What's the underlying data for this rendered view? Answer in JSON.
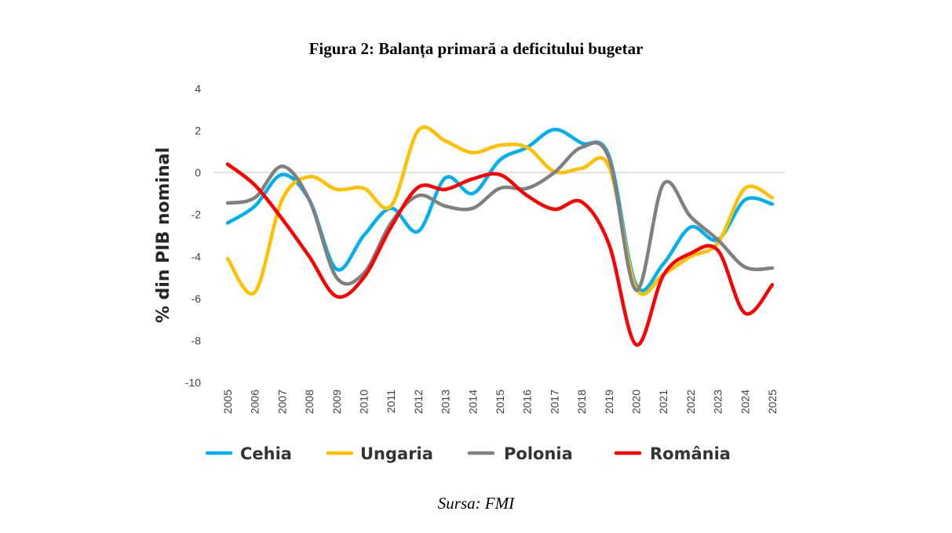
{
  "figure": {
    "title": "Figura 2: Balanța primară a deficitului bugetar",
    "source": "Sursa: FMI"
  },
  "chart_data": {
    "type": "line",
    "title": "Figura 2: Balanța primară a deficitului bugetar",
    "xlabel": "",
    "ylabel": "% din PIB nominal",
    "ylim": [
      -10,
      4
    ],
    "yticks": [
      4,
      2,
      0,
      -2,
      -4,
      -6,
      -8,
      -10
    ],
    "grid": "zero-line only",
    "legend_position": "bottom",
    "smooth": true,
    "categories": [
      "2005",
      "2006",
      "2007",
      "2008",
      "2009",
      "2010",
      "2011",
      "2012",
      "2013",
      "2014",
      "2015",
      "2016",
      "2017",
      "2018",
      "2019",
      "2020",
      "2021",
      "2022",
      "2023",
      "2024",
      "2025"
    ],
    "series": [
      {
        "name": "Cehia",
        "color": "#00B0F0",
        "values": [
          -2.4,
          -1.6,
          -0.1,
          -1.3,
          -4.6,
          -3.0,
          -1.7,
          -2.8,
          -0.25,
          -1.0,
          0.6,
          1.2,
          2.05,
          1.4,
          0.8,
          -5.35,
          -4.35,
          -2.6,
          -3.2,
          -1.3,
          -1.5
        ]
      },
      {
        "name": "Ungaria",
        "color": "#FFC000",
        "values": [
          -4.1,
          -5.7,
          -1.3,
          -0.2,
          -0.8,
          -0.75,
          -1.6,
          2.0,
          1.5,
          0.95,
          1.3,
          1.2,
          0.05,
          0.2,
          0.3,
          -5.5,
          -4.85,
          -4.0,
          -3.35,
          -0.75,
          -1.2
        ]
      },
      {
        "name": "Polonia",
        "color": "#808080",
        "values": [
          -1.45,
          -1.2,
          0.3,
          -1.3,
          -5.0,
          -4.8,
          -2.4,
          -1.1,
          -1.6,
          -1.7,
          -0.75,
          -0.75,
          0.0,
          1.2,
          0.7,
          -5.6,
          -0.55,
          -2.1,
          -3.2,
          -4.5,
          -4.55
        ]
      },
      {
        "name": "România",
        "color": "#FF0000",
        "values": [
          0.4,
          -0.6,
          -2.2,
          -4.0,
          -5.9,
          -5.0,
          -2.6,
          -0.7,
          -0.8,
          -0.3,
          -0.1,
          -1.1,
          -1.75,
          -1.4,
          -3.4,
          -8.2,
          -4.9,
          -3.85,
          -3.7,
          -6.7,
          -5.35
        ]
      }
    ]
  }
}
